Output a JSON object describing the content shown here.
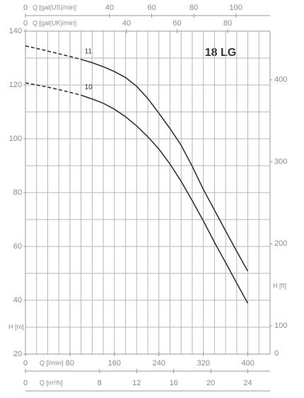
{
  "chart_data": {
    "type": "line",
    "title": "18 LG",
    "xlabel": "Q [l/min]",
    "ylabel": "H [m]",
    "x": [
      0,
      20,
      40,
      60,
      80,
      100,
      120,
      140,
      160,
      180,
      200,
      220,
      240,
      260,
      280,
      300,
      320,
      340,
      360,
      380,
      400
    ],
    "xlim": [
      0,
      440
    ],
    "xticks": [
      0,
      80,
      160,
      240,
      320,
      400
    ],
    "xgrid": [
      0,
      20,
      40,
      60,
      80,
      100,
      120,
      140,
      160,
      180,
      200,
      220,
      240,
      260,
      280,
      300,
      320,
      340,
      360,
      380,
      400,
      420,
      440
    ],
    "ylim": [
      20,
      140
    ],
    "yticks": [
      20,
      40,
      60,
      80,
      100,
      120,
      140
    ],
    "ygrid": [
      20,
      30,
      40,
      50,
      60,
      70,
      80,
      90,
      100,
      110,
      120,
      130,
      140
    ],
    "grid": true,
    "series": [
      {
        "name": "11",
        "color": "#333333",
        "values": [
          134.5,
          133.6,
          132.6,
          131.6,
          130.6,
          129.5,
          128.3,
          126.8,
          125,
          122.8,
          119.5,
          115,
          109.5,
          103.8,
          97.6,
          89.8,
          81.2,
          73.5,
          65.8,
          58.2,
          50.8
        ],
        "dashed": [
          true,
          true,
          true,
          true,
          true,
          false,
          false,
          false,
          false,
          false,
          false,
          false,
          false,
          false,
          false,
          false,
          false,
          false,
          false,
          false,
          false
        ]
      },
      {
        "name": "10",
        "color": "#333333",
        "values": [
          120.8,
          120,
          119.2,
          118.3,
          117.3,
          116.2,
          114.8,
          113.2,
          111,
          108.2,
          104.8,
          100.8,
          96.2,
          90.6,
          84.2,
          77,
          69.5,
          61.5,
          54,
          46.4,
          38.9
        ],
        "dashed": [
          true,
          true,
          true,
          true,
          true,
          false,
          false,
          false,
          false,
          false,
          false,
          false,
          false,
          false,
          false,
          false,
          false,
          false,
          false,
          false,
          false
        ]
      }
    ],
    "x2": {
      "label": "Q [m³/h]",
      "lim": [
        0,
        26.4
      ],
      "ticks": [
        0,
        8,
        12,
        16,
        20,
        24
      ]
    },
    "x_top_us": {
      "label": "Q [gal(US)/min]",
      "lim": [
        0,
        116.25
      ],
      "ticks": [
        0,
        40,
        60,
        80,
        100
      ]
    },
    "x_top_uk": {
      "label": "Q [gal(UK)/min]",
      "lim": [
        0,
        96.79
      ],
      "ticks": [
        0,
        40,
        60,
        80
      ]
    },
    "y2label": "H [ft]",
    "y2lim": [
      65.6,
      459.3
    ],
    "y2ticks": [
      100,
      200,
      300,
      400
    ],
    "y2_bottom_label": "0"
  }
}
